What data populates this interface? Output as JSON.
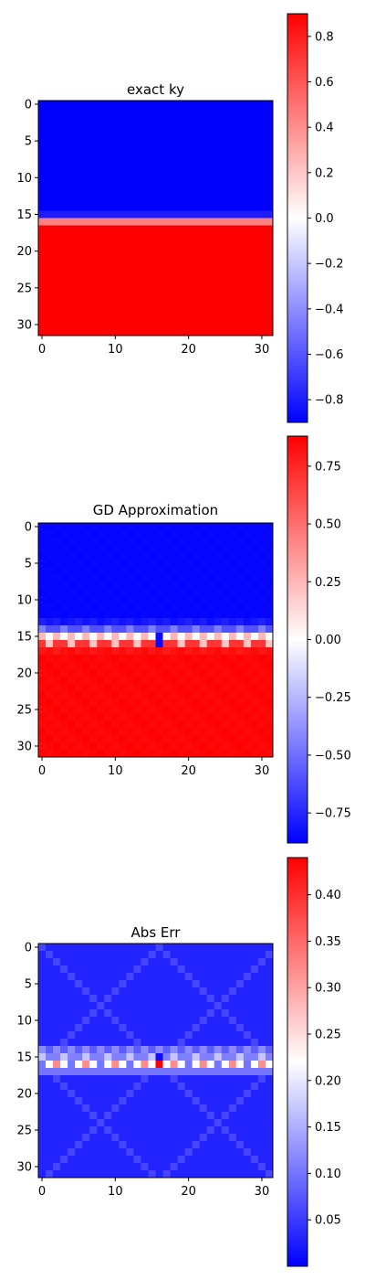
{
  "chart_data": [
    {
      "type": "heatmap",
      "title": "exact ky",
      "grid_size": 32,
      "colormap": "bwr",
      "colors": {
        "low": "#0000ff",
        "mid": "#ffffff",
        "high": "#ff0000"
      },
      "xticks": [
        0,
        10,
        20,
        30
      ],
      "yticks": [
        0,
        5,
        10,
        15,
        20,
        25,
        30
      ],
      "colorbar": {
        "range": [
          -0.9,
          0.9
        ],
        "ticks": [
          0.8,
          0.6,
          0.4,
          0.2,
          0.0,
          -0.2,
          -0.4,
          -0.6,
          -0.8
        ],
        "tick_labels": [
          "0.8",
          "0.6",
          "0.4",
          "0.2",
          "0.0",
          "−0.2",
          "−0.4",
          "−0.6",
          "−0.8"
        ]
      },
      "row_profile": {
        "rows_0_14": -0.9,
        "row_15": -0.8,
        "row_16": 0.45,
        "rows_17_31": 0.9
      }
    },
    {
      "type": "heatmap",
      "title": "GD Approximation",
      "grid_size": 32,
      "colormap": "bwr",
      "colors": {
        "low": "#0000ff",
        "mid": "#ffffff",
        "high": "#ff0000"
      },
      "xticks": [
        0,
        10,
        20,
        30
      ],
      "yticks": [
        0,
        5,
        10,
        15,
        20,
        25,
        30
      ],
      "colorbar": {
        "range": [
          -0.88,
          0.88
        ],
        "ticks": [
          0.75,
          0.5,
          0.25,
          0.0,
          -0.25,
          -0.5,
          -0.75
        ],
        "tick_labels": [
          "0.75",
          "0.50",
          "0.25",
          "0.00",
          "−0.25",
          "−0.50",
          "−0.75"
        ]
      },
      "row_profile": {
        "rows_0_12": -0.87,
        "row_13": -0.8,
        "row_14": -0.55,
        "row_15": 0.1,
        "row_16": 0.5,
        "row_17": 0.82,
        "rows_18_31": 0.86
      }
    },
    {
      "type": "heatmap",
      "title": "Abs Err",
      "grid_size": 32,
      "colormap": "bwr",
      "colors": {
        "low": "#0000ff",
        "mid": "#ffffff",
        "high": "#ff0000"
      },
      "xticks": [
        0,
        10,
        20,
        30
      ],
      "yticks": [
        0,
        5,
        10,
        15,
        20,
        25,
        30
      ],
      "colorbar": {
        "range": [
          0.0,
          0.44
        ],
        "ticks": [
          0.4,
          0.35,
          0.3,
          0.25,
          0.2,
          0.15,
          0.1,
          0.05
        ],
        "tick_labels": [
          "0.40",
          "0.35",
          "0.30",
          "0.25",
          "0.20",
          "0.15",
          "0.10",
          "0.05"
        ]
      },
      "row_profile": {
        "background": 0.03,
        "row_14": 0.1,
        "row_15": 0.14,
        "row_16": 0.25,
        "row_17": 0.1,
        "peak_at_row_16_col_16": 0.44
      }
    }
  ]
}
